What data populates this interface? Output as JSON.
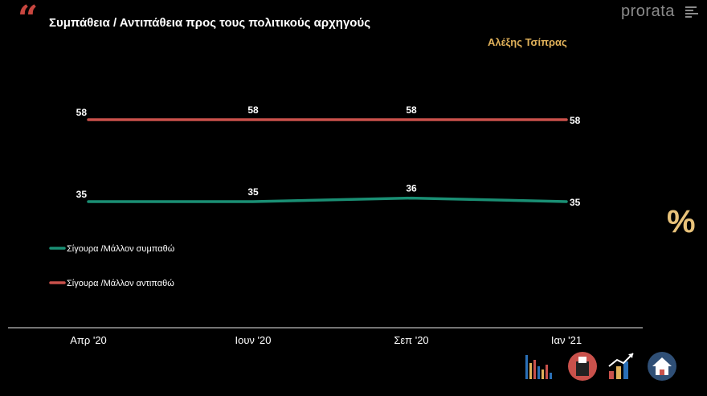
{
  "header": {
    "quote_mark": "“",
    "title": "Συμπάθεια / Αντιπάθεια προς τους πολιτικούς αρχηγούς",
    "brand": "prorata",
    "subject": "Αλέξης Τσίπρας"
  },
  "side": {
    "percent_symbol": "%"
  },
  "icons": [
    "bar-chart-icon",
    "ballot-box-icon",
    "growth-chart-icon",
    "house-icon"
  ],
  "colors": {
    "green": "#1a8f74",
    "red": "#c9514b",
    "gold": "#e0b15a",
    "axis": "#bbbbbb"
  },
  "chart_data": {
    "type": "line",
    "categories": [
      "Απρ '20",
      "Ιουν '20",
      "Σεπ '20",
      "Ιαν '21"
    ],
    "series": [
      {
        "name": "Σίγουρα /Μάλλον συμπαθώ",
        "values": [
          35,
          35,
          36,
          35
        ],
        "color": "#1a8f74"
      },
      {
        "name": "Σίγουρα /Μάλλον αντιπαθώ",
        "values": [
          58,
          58,
          58,
          58
        ],
        "color": "#c9514b"
      }
    ],
    "data_labels": [
      [
        "35",
        "35",
        "36",
        "35"
      ],
      [
        "58",
        "58",
        "58",
        "58"
      ]
    ],
    "legend": "left",
    "grid": false
  }
}
